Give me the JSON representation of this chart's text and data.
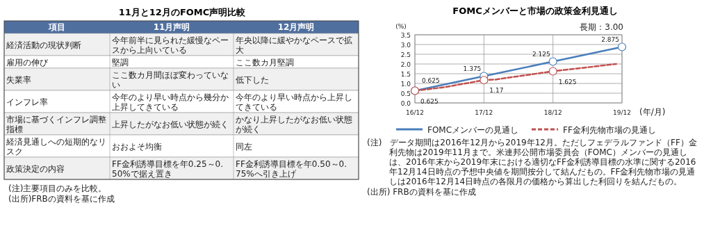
{
  "chart_data": [
    {
      "type": "other",
      "title": "11月と12月のFOMC声明比較",
      "categories": [
        "項目",
        "11月声明",
        "12月声明"
      ],
      "y_categories": [
        "経済活動の現状判断",
        "雇用の伸び",
        "失業率",
        "インフレ率",
        "市場に基づくインフレ調整指標",
        "経済見通しへの短期的なリスク",
        "政策決定の内容"
      ],
      "cell_labels": [
        [
          "今年前半に見られた緩慢なペースから上向いている",
          "年央以降に緩やかなペースで拡大"
        ],
        [
          "堅調",
          "ここ数カ月堅調"
        ],
        [
          "ここ数カ月間ほぼ変わっていない",
          "低下した"
        ],
        [
          "今年のより早い時点から幾分か上昇してきている",
          "今年のより早い時点から上昇してきている"
        ],
        [
          "上昇したがなお低い状態が続く",
          "かなり上昇したがなお低い状態が続く"
        ],
        [
          "おおよそ均衡",
          "同左"
        ],
        [
          "FF金利誘導目標を年0.25～0.50%で据え置き",
          "FF金利誘導目標を年0.50～0.75%へ引き上げ"
        ]
      ],
      "annotations": [
        "(注)主要項目のみを比較。",
        "(出所)FRBの資料を基に作成"
      ]
    },
    {
      "type": "line",
      "title": "FOMCメンバーと市場の政策金利見通し",
      "ylabel": "(%)",
      "xlabel": "(年/月)",
      "xlim": [
        "2016-12",
        "2019-12"
      ],
      "xticks": [
        {
          "value": "2016-12",
          "label": "16/12"
        },
        {
          "value": "2017-12",
          "label": "17/12"
        },
        {
          "value": "2018-12",
          "label": "18/12"
        },
        {
          "value": "2019-12",
          "label": "19/12"
        }
      ],
      "ylim": [
        0,
        3.5
      ],
      "yticks": [
        {
          "value": 0,
          "label": "0.0"
        },
        {
          "value": 0.5,
          "label": "0.5"
        },
        {
          "value": 1,
          "label": "1.0"
        },
        {
          "value": 1.5,
          "label": "1.5"
        },
        {
          "value": 2,
          "label": "2.0"
        },
        {
          "value": 2.5,
          "label": "2.5"
        },
        {
          "value": 3,
          "label": "3.0"
        },
        {
          "value": 3.5,
          "label": "3.5"
        }
      ],
      "grid": true,
      "legend": "bottom",
      "series": [
        {
          "name": "FOMCメンバーの見通し",
          "color": "#4a7ebb",
          "line_style": "solid",
          "marker": "circle",
          "x": [
            "2016-12",
            "2017-12",
            "2018-12",
            "2019-12"
          ],
          "values": [
            0.625,
            1.375,
            2.125,
            2.875
          ],
          "value_labels": [
            "0.625",
            "1.375",
            "2.125",
            "2.875"
          ]
        },
        {
          "name": "FF金利先物市場の見通し",
          "color": "#c0504d",
          "line_style": "dashed",
          "marker": "none",
          "x": [
            "2016-12",
            "2017-05",
            "2017-12",
            "2018-02",
            "2018-12",
            "2019-11"
          ],
          "values": [
            0.625,
            0.8,
            1.17,
            1.2,
            1.625,
            2.0
          ]
        },
        {
          "type": "scatter",
          "color": "#c0504d",
          "marker": "circle",
          "x": [
            "2016-12",
            "2017-12",
            "2018-12"
          ],
          "values": [
            0.625,
            1.17,
            1.625
          ],
          "value_labels": [
            "0.625",
            "1.17",
            "1.625"
          ]
        }
      ],
      "annotations": [
        "長期：3.00",
        "(注)　データ期間は2016年12月から2019年12月。ただしフェデラルファンド（FF）金利先物は2019年11月まで。米連邦公開市場委員会（FOMC）メンバーの見通しは、2016年末から2019年末における適切なFF金利誘導目標の水準に関する2016年12月14日時点の予想中央値を期間按分して結んだもの。FF金利先物市場の見通しは2016年12月14日時点の各限月の価格から算出した利回りを結んだもの。",
        "(出所) FRBの資料を基に作成"
      ]
    }
  ]
}
